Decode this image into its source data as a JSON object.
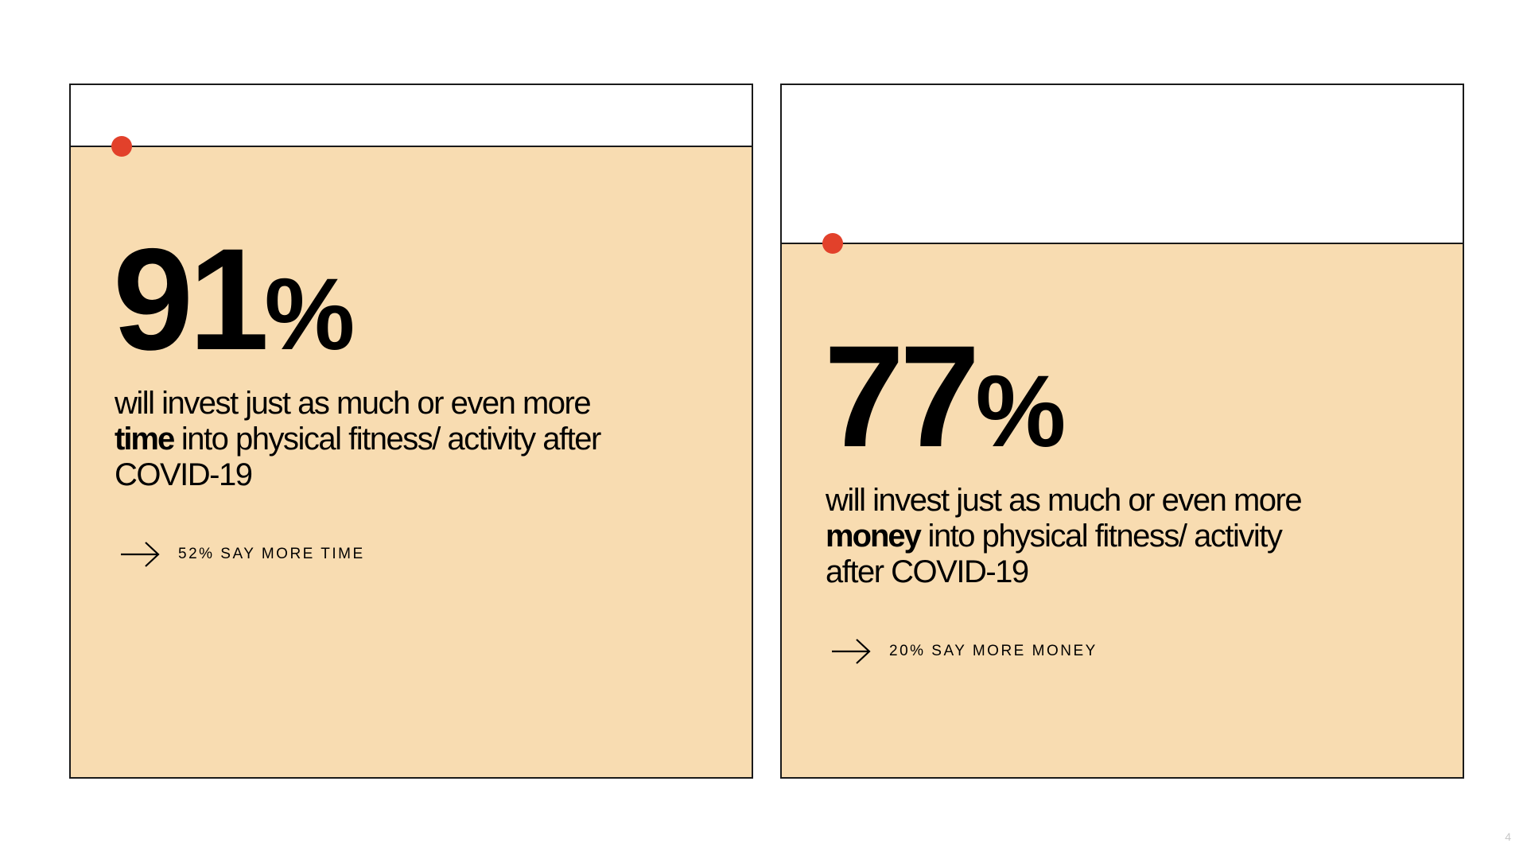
{
  "colors": {
    "fill": "#f8dcb1",
    "dot": "#e2412b",
    "border": "#1a1a1a"
  },
  "chart_data": [
    {
      "type": "bar",
      "value": 91,
      "ylim": [
        0,
        100
      ],
      "big_number": "91",
      "percent_sign": "%",
      "description_before": "will invest just as much or even more ",
      "description_bold": "time",
      "description_after": " into physical fitness/ activity after COVID-19",
      "callout": "52% SAY MORE TIME"
    },
    {
      "type": "bar",
      "value": 77,
      "ylim": [
        0,
        100
      ],
      "big_number": "77",
      "percent_sign": "%",
      "description_before": "will invest just as much or even more ",
      "description_bold": "money",
      "description_after": " into physical fitness/ activity after COVID-19",
      "callout": "20% SAY MORE MONEY"
    }
  ],
  "page_number": "4"
}
